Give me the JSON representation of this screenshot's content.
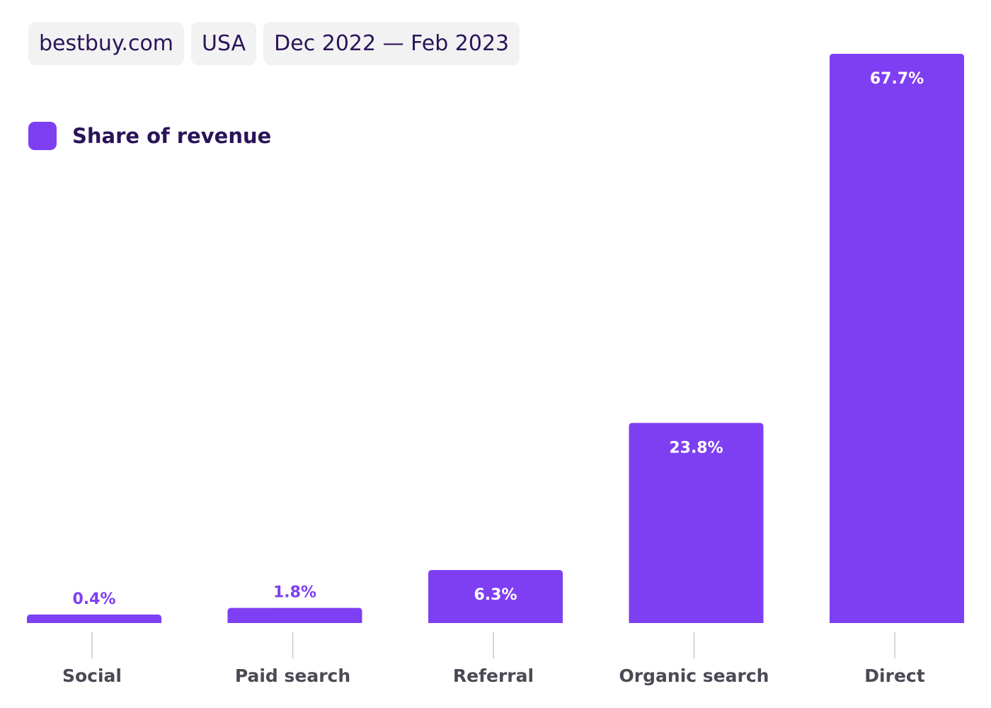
{
  "filters": {
    "site": "bestbuy.com",
    "country": "USA",
    "date_range": "Dec 2022 — Feb 2023"
  },
  "colors": {
    "bar": "#7e3ff2",
    "label_inside": "#ffffff",
    "label_outside": "#7e3ff2",
    "tick": "#c8c8cc"
  },
  "chart_data": {
    "type": "bar",
    "categories": [
      "Social",
      "Paid search",
      "Referral",
      "Organic search",
      "Direct"
    ],
    "series": [
      {
        "name": "Share of revenue",
        "values": [
          0.4,
          1.8,
          6.3,
          23.8,
          67.7
        ],
        "labels": [
          "0.4%",
          "1.8%",
          "6.3%",
          "23.8%",
          "67.7%"
        ]
      }
    ],
    "ylim": [
      0,
      67.7
    ],
    "grid": false,
    "legend": "top-left"
  }
}
